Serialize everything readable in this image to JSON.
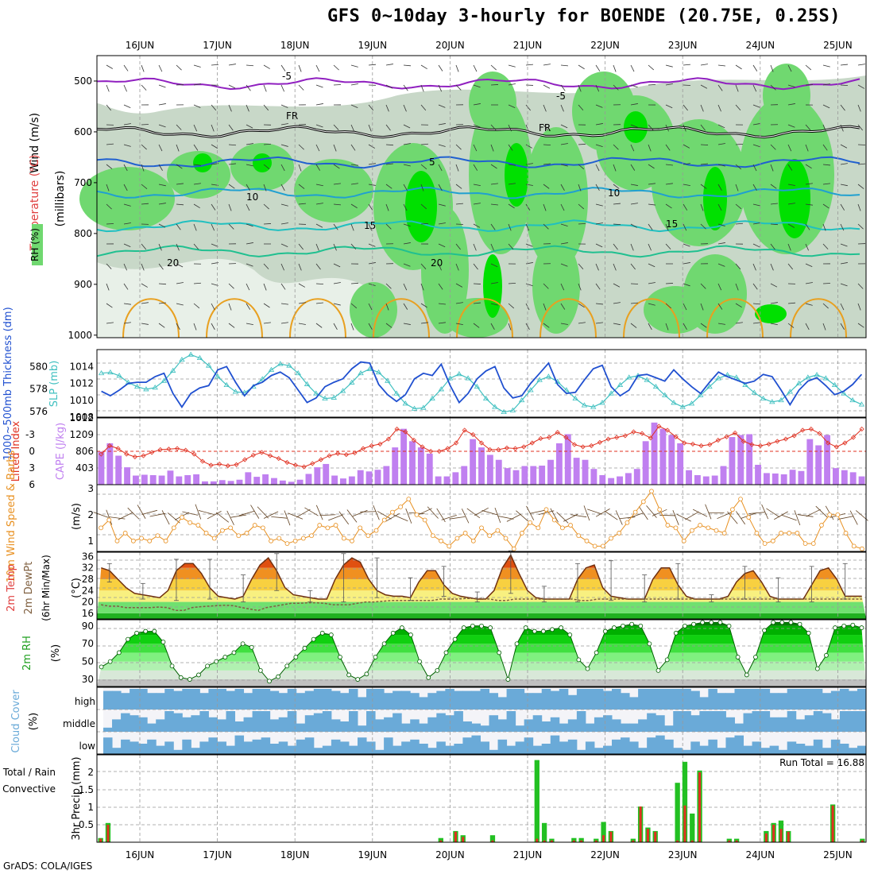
{
  "title": "GFS 0~10day 3-hourly for BOENDE (20.75E, 0.25S)",
  "credit": "GrADS: COLA/IGES",
  "dates": [
    "16JUN",
    "17JUN",
    "18JUN",
    "19JUN",
    "20JUN",
    "21JUN",
    "22JUN",
    "23JUN",
    "24JUN",
    "25JUN"
  ],
  "colors": {
    "rh_dark": "#00e000",
    "rh_mid": "#70d870",
    "rh_light": "#c8d8c8",
    "rain": "#22c022",
    "convective": "#e03020",
    "cloud": "#6aaad8",
    "thick": "#2050d0",
    "slp": "#40c0c0",
    "wind10": "#e89020",
    "cape": "#c080f0",
    "li": "#e03020"
  },
  "panels": {
    "upper": {
      "labels": {
        "wind": "Wind (m/s)",
        "temp": "Temperature (°C)",
        "rh": "RH (%)",
        "pressure": "(millibars)"
      },
      "pressure_levels": [
        500,
        600,
        700,
        800,
        900,
        1000
      ],
      "isotherm_labels": [
        "-5",
        "-5",
        "FR",
        "FR",
        "5",
        "10",
        "10",
        "15",
        "15",
        "20",
        "20"
      ]
    },
    "thick_slp": {
      "labels": {
        "thick": "1000~500mb Thickness (dm)",
        "slp": "SLP (mb)"
      },
      "thick_ticks": [
        576,
        578,
        580
      ],
      "slp_ticks": [
        1008,
        1010,
        1012,
        1014
      ]
    },
    "cape_li": {
      "labels": {
        "li": "Lifted Index",
        "cape": "CAPE (J/kg)"
      },
      "li_ticks": [
        -3,
        0,
        3,
        6
      ],
      "cape_ticks": [
        403,
        806,
        1209,
        1612
      ]
    },
    "wind10": {
      "labels": {
        "title": "10m Wind Speed & Barbs",
        "unit": "(m/s)"
      },
      "ticks": [
        1,
        2,
        3
      ]
    },
    "temp2m": {
      "labels": {
        "title": "2m Temp 2m DewPt (6hr Min/Max)",
        "unit": "(°C)"
      },
      "ticks": [
        16,
        20,
        24,
        28,
        32,
        36
      ]
    },
    "rh2m": {
      "labels": {
        "title": "2m RH",
        "unit": "(%)"
      },
      "ticks": [
        30,
        50,
        70,
        90
      ]
    },
    "cloud": {
      "labels": {
        "title": "Cloud Cover",
        "unit": "(%)",
        "high": "high",
        "middle": "middle",
        "low": "low"
      }
    },
    "precip": {
      "labels": {
        "title": "3hr Precip (mm)",
        "total": "Total / Rain",
        "conv": "Convective",
        "run_total": "Run Total = 16.88"
      },
      "ticks": [
        0.5,
        1,
        1.5,
        2
      ]
    }
  },
  "chart_data": [
    {
      "type": "line",
      "name": "slp",
      "ylim": [
        1008,
        1016
      ],
      "values": [
        1013.2,
        1013.3,
        1012.9,
        1012.1,
        1011.6,
        1011.3,
        1011.5,
        1012.3,
        1013.5,
        1014.8,
        1015.4,
        1015.0,
        1014.1,
        1012.8,
        1011.8,
        1011.0,
        1010.9,
        1011.6,
        1012.5,
        1013.6,
        1014.3,
        1014.1,
        1013.2,
        1011.9,
        1010.8,
        1010.2,
        1010.3,
        1011.1,
        1012.1,
        1013.2,
        1013.7,
        1013.3,
        1012.3,
        1010.8,
        1009.6,
        1009.0,
        1009.1,
        1010.2,
        1011.3,
        1012.6,
        1013.1,
        1012.6,
        1011.6,
        1010.2,
        1009.2,
        1008.6,
        1008.8,
        1010.0,
        1011.2,
        1012.4,
        1012.8,
        1012.2,
        1011.2,
        1010.2,
        1009.4,
        1009.2,
        1009.7,
        1010.8,
        1011.8,
        1012.7,
        1012.9,
        1012.4,
        1011.6,
        1010.6,
        1009.7,
        1009.2,
        1009.6,
        1010.6,
        1011.6,
        1012.6,
        1013.0,
        1012.7,
        1011.8,
        1010.9,
        1010.2,
        1009.8,
        1010.0,
        1011.0,
        1012.0,
        1012.7,
        1013.0,
        1012.6,
        1011.8,
        1010.8,
        1010.0,
        1009.5
      ]
    },
    {
      "type": "line",
      "name": "thickness",
      "ylim": [
        575.5,
        581.5
      ],
      "values": [
        577.8,
        577.4,
        577.9,
        578.5,
        578.6,
        578.6,
        579.1,
        579.4,
        577.6,
        576.4,
        577.6,
        578.1,
        578.3,
        579.7,
        580.0,
        578.6,
        577.4,
        578.3,
        578.6,
        579.2,
        579.5,
        579.0,
        577.9,
        576.8,
        577.2,
        578.2,
        578.6,
        578.9,
        579.8,
        580.4,
        580.3,
        578.4,
        577.5,
        576.9,
        577.5,
        578.9,
        579.4,
        579.2,
        580.2,
        578.3,
        576.8,
        577.6,
        578.9,
        579.6,
        580.0,
        578.1,
        577.2,
        577.4,
        578.5,
        579.4,
        580.3,
        578.4,
        577.6,
        577.7,
        578.8,
        579.8,
        580.1,
        578.2,
        577.4,
        577.9,
        579.2,
        579.3,
        579.0,
        578.7,
        579.7,
        578.9,
        578.2,
        577.6,
        578.6,
        579.5,
        579.1,
        578.8,
        578.5,
        578.7,
        579.3,
        579.1,
        577.9,
        576.6,
        577.9,
        578.7,
        579.0,
        578.3,
        577.5,
        577.8,
        578.4,
        579.3
      ]
    },
    {
      "type": "bar",
      "name": "cape",
      "ylim": [
        0,
        1612
      ],
      "values": [
        800,
        1000,
        700,
        420,
        220,
        240,
        230,
        220,
        340,
        200,
        230,
        250,
        80,
        80,
        110,
        90,
        120,
        300,
        190,
        250,
        160,
        100,
        70,
        120,
        260,
        420,
        500,
        220,
        150,
        200,
        350,
        320,
        360,
        450,
        900,
        1350,
        1050,
        900,
        750,
        200,
        200,
        300,
        450,
        1100,
        900,
        720,
        600,
        400,
        350,
        450,
        450,
        460,
        600,
        1000,
        1220,
        650,
        600,
        380,
        230,
        160,
        200,
        280,
        380,
        1050,
        1500,
        1350,
        1200,
        1000,
        350,
        230,
        200,
        220,
        450,
        1150,
        1200,
        1220,
        480,
        280,
        270,
        250,
        360,
        330,
        1100,
        950,
        1200,
        400,
        350,
        300,
        200
      ]
    },
    {
      "type": "line",
      "name": "lifted_index",
      "ylim": [
        -6,
        6
      ],
      "values": [
        0.5,
        -1.0,
        -0.5,
        0.5,
        1.0,
        0.8,
        0.2,
        -0.3,
        -0.4,
        -0.5,
        -0.2,
        0.5,
        1.8,
        2.5,
        2.3,
        2.6,
        2.4,
        1.5,
        0.7,
        0.2,
        0.8,
        1.3,
        2.0,
        2.5,
        2.8,
        2.2,
        1.5,
        0.8,
        0.4,
        0.6,
        0.3,
        -0.5,
        -1.0,
        -1.3,
        -2.2,
        -4.0,
        -3.5,
        -2.0,
        -0.8,
        0.0,
        0.0,
        -0.5,
        -1.5,
        -3.8,
        -3.0,
        -1.5,
        -0.3,
        -0.3,
        -0.6,
        -0.5,
        -0.8,
        -1.5,
        -2.3,
        -2.5,
        -3.4,
        -2.5,
        -1.2,
        -0.8,
        -1.0,
        -1.6,
        -2.2,
        -2.5,
        -2.8,
        -3.5,
        -3.2,
        -2.4,
        -4.5,
        -3.8,
        -2.6,
        -1.5,
        -1.3,
        -1.0,
        -1.2,
        -2.0,
        -2.6,
        -3.3,
        -1.8,
        -1.2,
        -1.0,
        -1.3,
        -1.8,
        -2.2,
        -2.8,
        -3.8,
        -4.0,
        -3.2,
        -1.5,
        -0.8,
        -1.5,
        -2.5,
        -4.0
      ]
    },
    {
      "type": "line",
      "name": "wind10_speed",
      "ylim": [
        0.5,
        3
      ],
      "values": [
        1.5,
        1.8,
        1.0,
        1.3,
        1.0,
        1.1,
        1.0,
        1.2,
        1.0,
        1.5,
        1.9,
        1.7,
        1.6,
        1.3,
        1.1,
        1.4,
        1.5,
        1.2,
        1.3,
        1.6,
        1.5,
        1.0,
        1.1,
        0.9,
        1.0,
        1.1,
        1.2,
        1.6,
        1.5,
        1.6,
        1.1,
        1.0,
        1.5,
        1.2,
        1.4,
        1.8,
        2.1,
        2.3,
        2.6,
        2.0,
        1.8,
        1.2,
        1.0,
        0.8,
        1.1,
        1.3,
        1.0,
        1.5,
        1.2,
        1.4,
        1.1,
        0.7,
        1.3,
        1.7,
        1.5,
        2.2,
        1.8,
        1.5,
        1.6,
        1.2,
        1.0,
        0.8,
        0.8,
        1.1,
        1.3,
        1.7,
        2.1,
        2.5,
        2.9,
        2.2,
        1.6,
        1.5,
        1.0,
        1.4,
        1.6,
        1.5,
        1.4,
        1.3,
        2.2,
        2.6,
        1.9,
        1.3,
        0.9,
        1.0,
        1.3,
        1.3,
        1.3,
        0.9,
        0.9,
        1.6,
        2.0,
        2.0,
        1.3,
        0.8,
        0.7
      ]
    },
    {
      "type": "area",
      "name": "temp2m",
      "ylim": [
        14,
        37
      ],
      "values": [
        32,
        31,
        28,
        25,
        23,
        22.5,
        22,
        21.5,
        24,
        31,
        33.5,
        33.5,
        30,
        25,
        22,
        21.5,
        21,
        22,
        28,
        33,
        35.5,
        31,
        25,
        22.5,
        22,
        21.5,
        21,
        21,
        28,
        33,
        35.5,
        34,
        28,
        24,
        22.5,
        22,
        22,
        21.5,
        27,
        31,
        31,
        26,
        23,
        22,
        21.5,
        21,
        21,
        24,
        32,
        36.5,
        30,
        24,
        21.5,
        21,
        21,
        21,
        21,
        28,
        32,
        33,
        25,
        22,
        21.5,
        21,
        21,
        21,
        28,
        32,
        32,
        26,
        22,
        21,
        21,
        21,
        21,
        22,
        27,
        30,
        31,
        27,
        22,
        21,
        21,
        21,
        21,
        26,
        31,
        32,
        28,
        22,
        22,
        22
      ]
    },
    {
      "type": "line",
      "name": "dewpt2m",
      "ylim": [
        14,
        37
      ],
      "values": [
        19,
        18.5,
        18.5,
        18,
        18,
        18,
        18,
        18.2,
        18,
        17,
        17,
        18,
        18.3,
        18.5,
        18.7,
        18.8,
        18.7,
        18,
        17.5,
        17,
        18,
        18.5,
        19,
        19.5,
        19.5,
        19.7,
        19.7,
        19.5,
        19,
        19,
        19,
        19.5,
        20,
        20,
        20.2,
        20.5,
        20.5,
        20.5,
        20.5,
        20.5,
        20.5,
        21,
        21,
        21,
        21.2,
        21.2,
        21.2,
        21,
        20.5,
        20.5,
        21,
        21,
        21,
        21,
        21,
        21,
        21,
        21,
        20.5,
        20.5,
        21,
        21,
        21,
        21,
        21,
        21,
        21,
        21,
        21,
        21,
        21,
        21,
        21,
        21,
        21,
        21,
        21,
        21,
        21,
        21,
        21,
        21,
        21,
        21,
        21,
        21,
        21,
        21,
        21,
        21,
        21,
        21,
        21
      ]
    },
    {
      "type": "area",
      "name": "rh2m",
      "ylim": [
        25,
        95
      ],
      "values": [
        44,
        50,
        60,
        75,
        82,
        84,
        84,
        72,
        45,
        32,
        30,
        35,
        45,
        50,
        55,
        60,
        70,
        66,
        40,
        28,
        33,
        45,
        55,
        65,
        75,
        82,
        80,
        55,
        35,
        30,
        36,
        55,
        70,
        82,
        88,
        80,
        50,
        32,
        40,
        60,
        75,
        88,
        90,
        90,
        88,
        60,
        30,
        70,
        88,
        84,
        84,
        86,
        88,
        80,
        52,
        42,
        60,
        84,
        88,
        90,
        92,
        90,
        70,
        40,
        52,
        82,
        90,
        92,
        94,
        94,
        94,
        90,
        55,
        35,
        55,
        85,
        94,
        94,
        94,
        92,
        82,
        42,
        57,
        88,
        90,
        91,
        88
      ]
    },
    {
      "type": "bar",
      "name": "precip_total",
      "ylim": [
        0,
        2.5
      ],
      "values": [
        0.12,
        0.55,
        0,
        0,
        0,
        0,
        0,
        0,
        0,
        0,
        0,
        0,
        0,
        0,
        0,
        0,
        0,
        0,
        0,
        0,
        0,
        0,
        0,
        0,
        0,
        0,
        0,
        0,
        0,
        0,
        0,
        0,
        0,
        0,
        0,
        0,
        0,
        0,
        0,
        0,
        0,
        0,
        0,
        0,
        0,
        0,
        0.12,
        0,
        0.32,
        0.2,
        0,
        0,
        0,
        0.2,
        0,
        0,
        0,
        0,
        0,
        2.35,
        0.55,
        0.1,
        0,
        0,
        0.12,
        0.12,
        0,
        0.1,
        0.58,
        0.32,
        0,
        0,
        0.1,
        1.02,
        0.42,
        0.32,
        0,
        0,
        1.7,
        2.3,
        0.82,
        2.05,
        0,
        0,
        0,
        0.1,
        0.1,
        0,
        0,
        0,
        0.32,
        0.55,
        0.62,
        0.32,
        0,
        0,
        0,
        0,
        0,
        1.08,
        0,
        0,
        0,
        0.1
      ]
    },
    {
      "type": "bar",
      "name": "precip_convective",
      "ylim": [
        0,
        2.5
      ],
      "values": [
        0.1,
        0.5,
        0,
        0,
        0,
        0,
        0,
        0,
        0,
        0,
        0,
        0,
        0,
        0,
        0,
        0,
        0,
        0,
        0,
        0,
        0,
        0,
        0,
        0,
        0,
        0,
        0,
        0,
        0,
        0,
        0,
        0,
        0,
        0,
        0,
        0,
        0,
        0,
        0,
        0,
        0,
        0,
        0,
        0,
        0,
        0,
        0.05,
        0,
        0.3,
        0.15,
        0,
        0,
        0,
        0.05,
        0,
        0,
        0,
        0,
        0,
        0.1,
        0.05,
        0.05,
        0,
        0,
        0.05,
        0.05,
        0,
        0.05,
        0.2,
        0.3,
        0,
        0,
        0.05,
        1.02,
        0.38,
        0.3,
        0,
        0,
        0.05,
        1.05,
        0.05,
        2.0,
        0,
        0,
        0,
        0.05,
        0.05,
        0,
        0,
        0,
        0.25,
        0.5,
        0.38,
        0.3,
        0,
        0,
        0,
        0,
        0,
        1.05,
        0,
        0,
        0,
        0.05
      ]
    },
    {
      "type": "area",
      "name": "cloud_high",
      "ylim": [
        0,
        100
      ],
      "values": [
        90,
        90,
        80,
        100,
        100,
        80,
        80,
        100,
        90,
        100,
        100,
        80,
        100,
        100,
        90,
        100,
        80,
        100,
        100,
        90,
        80,
        100,
        80,
        90,
        100,
        100,
        90,
        80,
        100,
        60,
        100,
        100,
        80,
        90,
        90,
        80,
        60,
        80,
        90,
        100,
        90,
        90,
        90,
        100,
        80,
        60,
        100,
        100,
        80,
        80,
        100,
        90,
        100,
        70,
        100,
        100,
        100,
        90,
        100,
        80,
        60,
        100,
        100,
        100,
        100,
        100,
        100,
        90,
        60,
        100,
        80,
        80,
        100,
        100,
        100,
        100,
        80,
        80,
        100,
        100,
        100,
        100,
        80,
        90,
        100,
        90,
        100
      ]
    },
    {
      "type": "area",
      "name": "cloud_middle",
      "ylim": [
        0,
        100
      ],
      "values": [
        20,
        60,
        90,
        80,
        70,
        40,
        60,
        100,
        90,
        70,
        80,
        100,
        70,
        60,
        100,
        50,
        70,
        100,
        100,
        60,
        70,
        100,
        40,
        80,
        90,
        100,
        60,
        50,
        100,
        30,
        100,
        60,
        70,
        90,
        40,
        60,
        40,
        70,
        90,
        80,
        100,
        50,
        40,
        30,
        80,
        60,
        100,
        30,
        60,
        80,
        50,
        70,
        40,
        60,
        100,
        40,
        70,
        80,
        60,
        40,
        40,
        60,
        90,
        80,
        30,
        100,
        100,
        80,
        100,
        100,
        100,
        70,
        40,
        90,
        100,
        100,
        70,
        70,
        100,
        60,
        80,
        100,
        90,
        60,
        100,
        100,
        100
      ]
    },
    {
      "type": "area",
      "name": "cloud_low",
      "ylim": [
        0,
        100
      ],
      "values": [
        80,
        30,
        70,
        60,
        50,
        70,
        40,
        60,
        20,
        70,
        30,
        60,
        80,
        60,
        40,
        90,
        60,
        70,
        80,
        50,
        60,
        40,
        70,
        80,
        30,
        40,
        70,
        60,
        40,
        80,
        60,
        20,
        80,
        40,
        60,
        70,
        50,
        30,
        60,
        40,
        50,
        80,
        90,
        60,
        20,
        70,
        40,
        60,
        80,
        40,
        50,
        90,
        60,
        70,
        20,
        60,
        30,
        40,
        70,
        80,
        60,
        30,
        80,
        90,
        70,
        30,
        20,
        60,
        40,
        70,
        30,
        80,
        90,
        40,
        60,
        30,
        40,
        20,
        60,
        50,
        40,
        70,
        30,
        70,
        50,
        30,
        40
      ]
    }
  ]
}
